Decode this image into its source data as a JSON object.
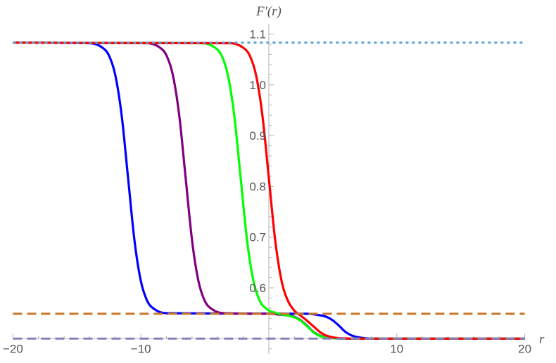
{
  "chart_data": {
    "type": "line",
    "xlabel": "r",
    "ylabel": "F′(r)",
    "xlim": [
      -20,
      20
    ],
    "ylim": [
      0.47,
      1.12
    ],
    "axis_origin": [
      0,
      0.5
    ],
    "grid": false,
    "x_ticks": [
      {
        "value": -20,
        "label": "−20"
      },
      {
        "value": -10,
        "label": "−10"
      },
      {
        "value": 10,
        "label": "10"
      },
      {
        "value": 20,
        "label": "20"
      }
    ],
    "y_ticks": [
      {
        "value": 0.6,
        "label": "0.6"
      },
      {
        "value": 0.7,
        "label": "0.7"
      },
      {
        "value": 0.8,
        "label": "0.8"
      },
      {
        "value": 0.9,
        "label": "0.9"
      },
      {
        "value": 1.0,
        "label": "1.0"
      },
      {
        "value": 1.1,
        "label": "1.1"
      }
    ],
    "series": [
      {
        "color": "#0000FF",
        "x": [
          -20,
          -14,
          -13,
          -12.5,
          -12,
          -11.5,
          -11,
          -10.5,
          -10,
          -9.5,
          -9,
          -8,
          3,
          4,
          4.5,
          5,
          5.5,
          6,
          6.5,
          7.5,
          9,
          20
        ],
        "y": [
          1.083,
          1.082,
          1.073,
          1.058,
          1.019,
          0.939,
          0.816,
          0.693,
          0.613,
          0.574,
          0.559,
          0.55,
          0.549,
          0.546,
          0.543,
          0.536,
          0.525,
          0.513,
          0.506,
          0.501,
          0.5,
          0.5
        ]
      },
      {
        "color": "#800080",
        "x": [
          -20,
          -9.5,
          -8.5,
          -8,
          -7.5,
          -7,
          -6.5,
          -6,
          -5.5,
          -5,
          -4.5,
          -3.5,
          0,
          1,
          2,
          2.5,
          3,
          3.5,
          4,
          5,
          6,
          20
        ],
        "y": [
          1.083,
          1.082,
          1.073,
          1.058,
          1.019,
          0.939,
          0.816,
          0.693,
          0.613,
          0.574,
          0.559,
          0.55,
          0.549,
          0.547,
          0.543,
          0.536,
          0.525,
          0.513,
          0.506,
          0.501,
          0.5,
          0.5
        ]
      },
      {
        "color": "#00FF00",
        "x": [
          -20,
          -5.2,
          -4.2,
          -3.7,
          -3.2,
          -2.7,
          -2.2,
          -1.7,
          -1.2,
          -0.7,
          -0.2,
          0.8,
          2,
          2.5,
          3,
          3.5,
          4,
          5,
          6,
          20
        ],
        "y": [
          1.083,
          1.082,
          1.073,
          1.058,
          1.019,
          0.939,
          0.816,
          0.693,
          0.613,
          0.574,
          0.559,
          0.549,
          0.542,
          0.535,
          0.524,
          0.512,
          0.505,
          0.501,
          0.5,
          0.5
        ]
      },
      {
        "color": "#FF0000",
        "x": [
          -20,
          -3,
          -2,
          -1.5,
          -1,
          -0.5,
          0,
          0.5,
          1,
          1.5,
          2,
          2.5,
          3,
          3.5,
          4,
          4.5,
          5.5,
          7,
          20
        ],
        "y": [
          1.083,
          1.082,
          1.073,
          1.058,
          1.019,
          0.939,
          0.816,
          0.693,
          0.613,
          0.574,
          0.555,
          0.545,
          0.535,
          0.524,
          0.513,
          0.506,
          0.501,
          0.5,
          0.5
        ]
      }
    ],
    "reference_lines": [
      {
        "y": 1.083,
        "color": "#5BA3D6",
        "style": "dotted"
      },
      {
        "y": 0.549,
        "color": "#C8782A",
        "style": "dashed"
      },
      {
        "y": 0.5,
        "color": "#8C80BC",
        "style": "dashed"
      }
    ]
  }
}
